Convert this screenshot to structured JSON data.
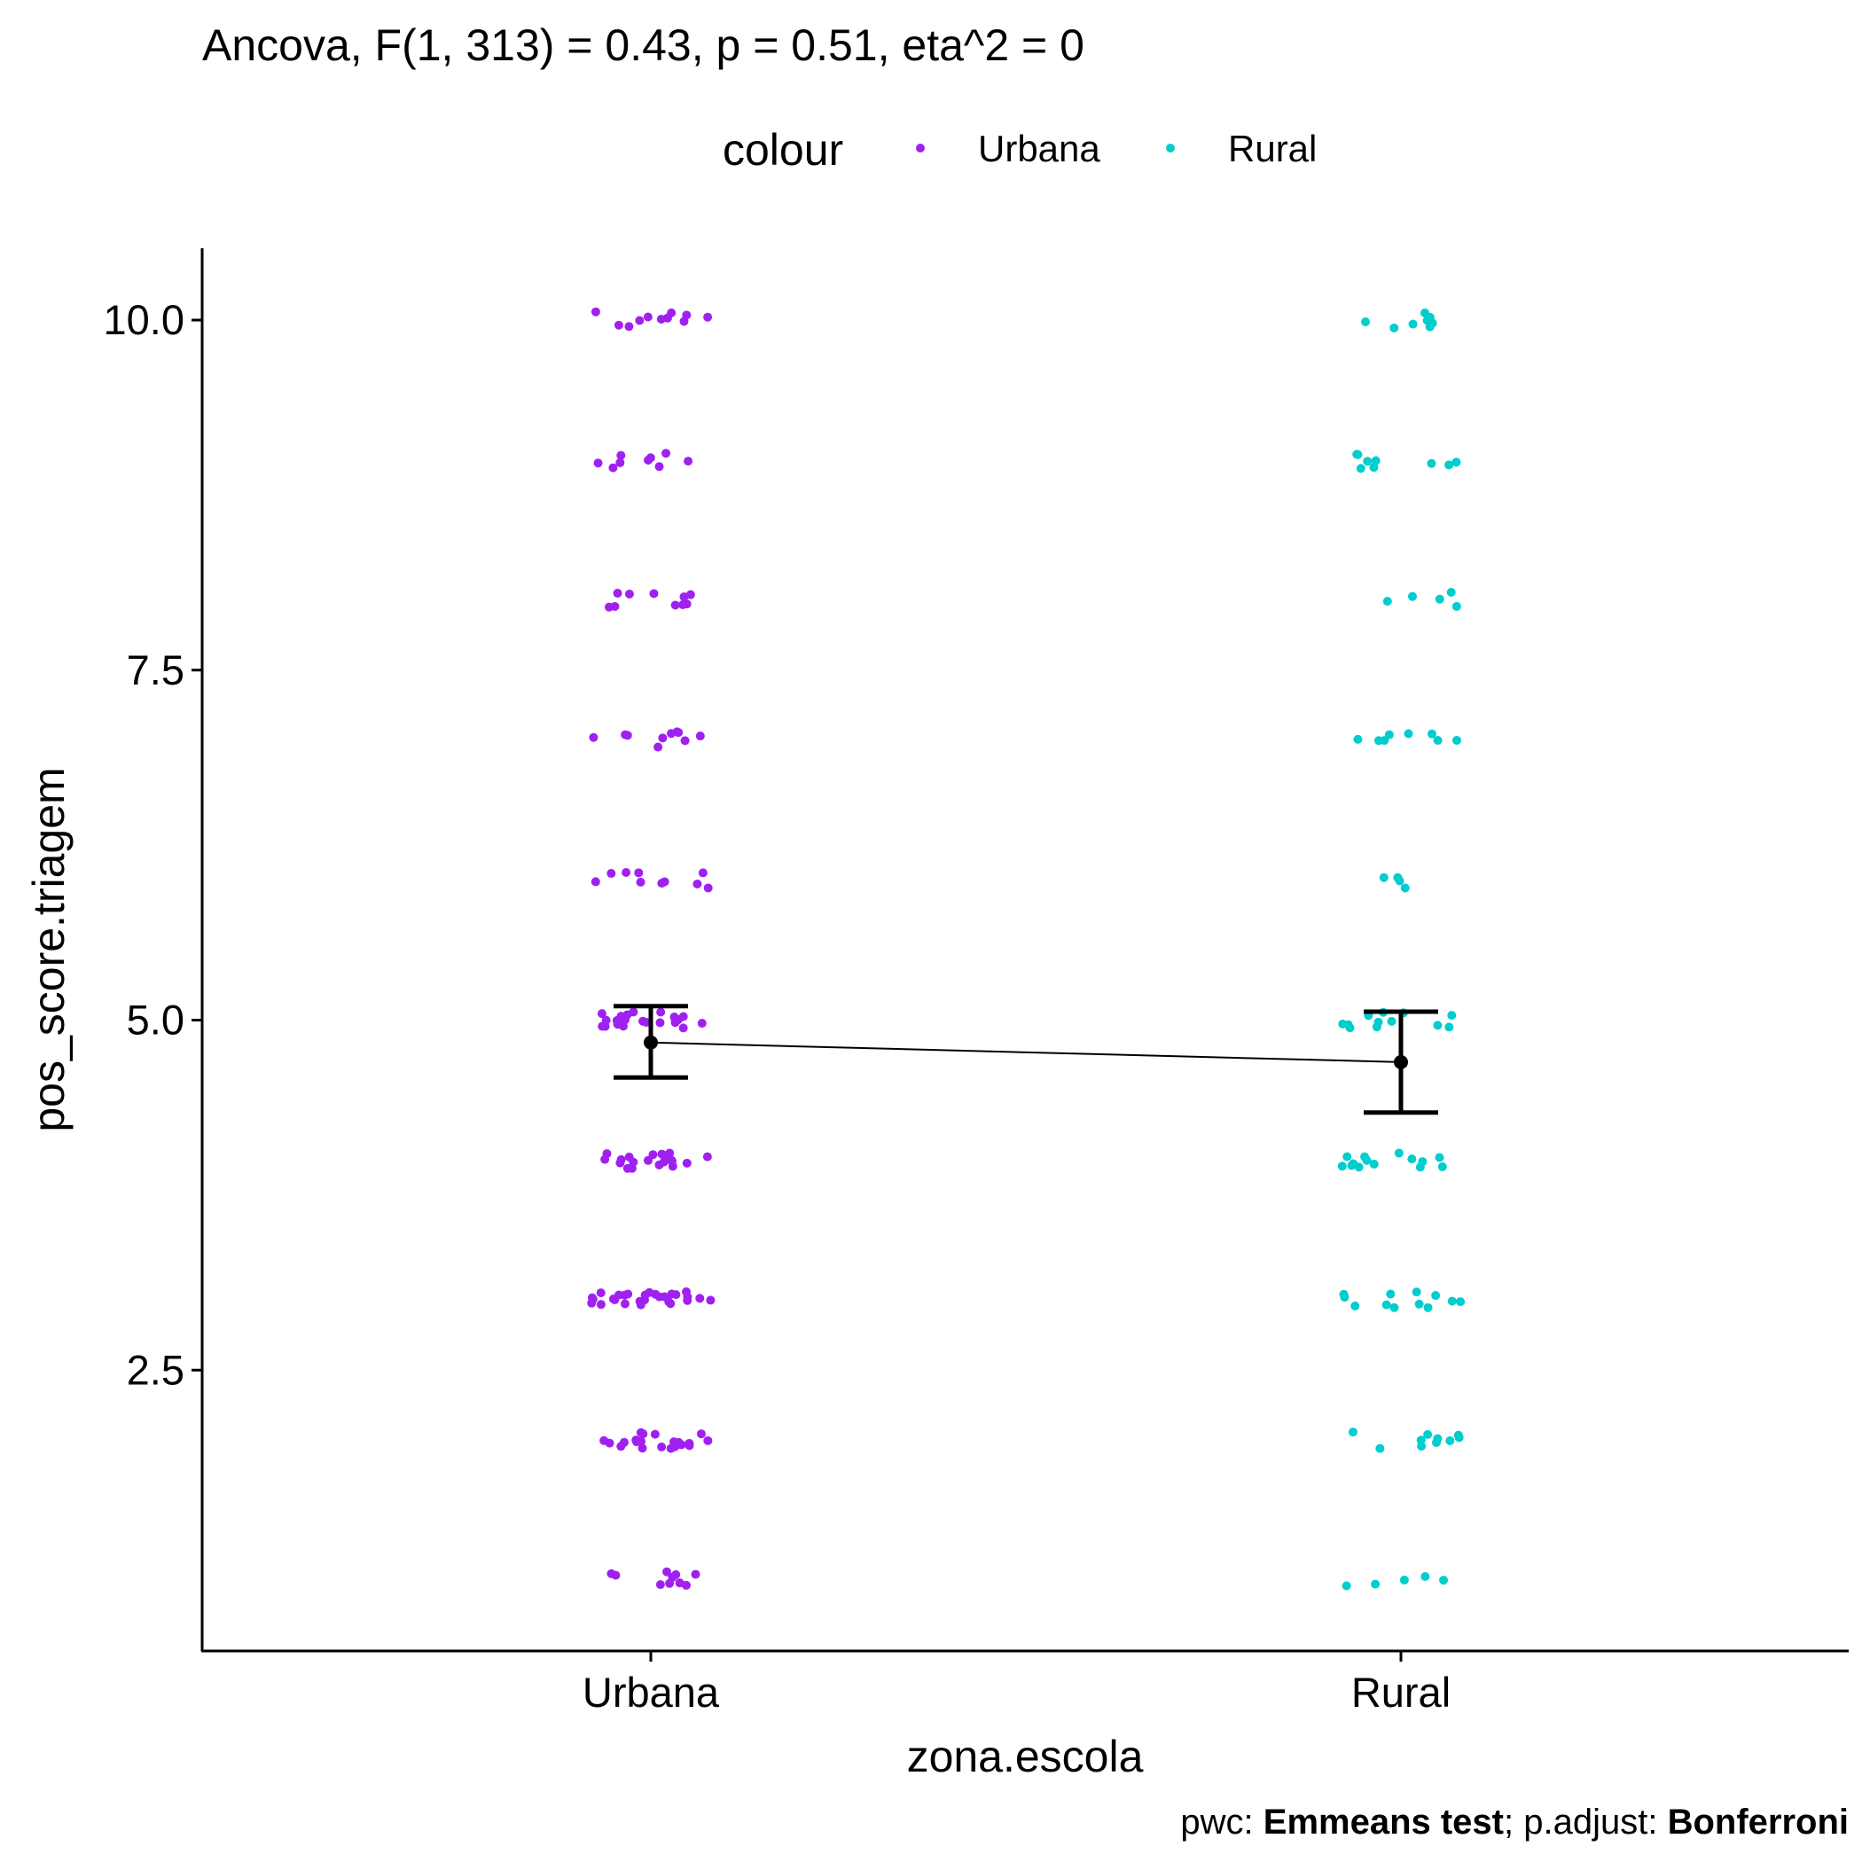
{
  "chart_data": {
    "type": "scatter",
    "title": "Ancova, F(1, 313) = 0.43, p = 0.51, eta^2 = 0",
    "xlabel": "zona.escola",
    "ylabel": "pos_score.triagem",
    "categories": [
      "Urbana",
      "Rural"
    ],
    "ylim": [
      0.6,
      10.5
    ],
    "yticks": [
      2.5,
      5.0,
      7.5,
      10.0
    ],
    "ytick_labels": [
      "2.5",
      "5.0",
      "7.5",
      "10.0"
    ],
    "grid": false,
    "legend": {
      "title": "colour",
      "placement": "top",
      "entries": [
        {
          "label": "Urbana",
          "color": "#A020F0"
        },
        {
          "label": "Rural",
          "color": "#00CDCD"
        }
      ]
    },
    "series": [
      {
        "name": "Urbana",
        "category": "Urbana",
        "color": "#A020F0",
        "counts_by_score": {
          "1": 10,
          "2": 22,
          "3": 28,
          "4": 20,
          "5": 22,
          "6": 10,
          "7": 10,
          "8": 10,
          "9": 9,
          "10": 11
        }
      },
      {
        "name": "Rural",
        "category": "Rural",
        "color": "#00CDCD",
        "counts_by_score": {
          "1": 5,
          "2": 10,
          "3": 12,
          "4": 14,
          "5": 12,
          "6": 4,
          "7": 8,
          "8": 5,
          "9": 9,
          "10": 8
        }
      }
    ],
    "means": [
      {
        "category": "Urbana",
        "mean": 4.84,
        "lower": 4.59,
        "upper": 5.1
      },
      {
        "category": "Rural",
        "mean": 4.7,
        "lower": 4.34,
        "upper": 5.06
      }
    ],
    "caption": {
      "parts": [
        {
          "text": "pwc: ",
          "bold": false
        },
        {
          "text": "Emmeans test",
          "bold": true
        },
        {
          "text": "; p.adjust: ",
          "bold": false
        },
        {
          "text": "Bonferroni",
          "bold": true
        }
      ]
    }
  }
}
